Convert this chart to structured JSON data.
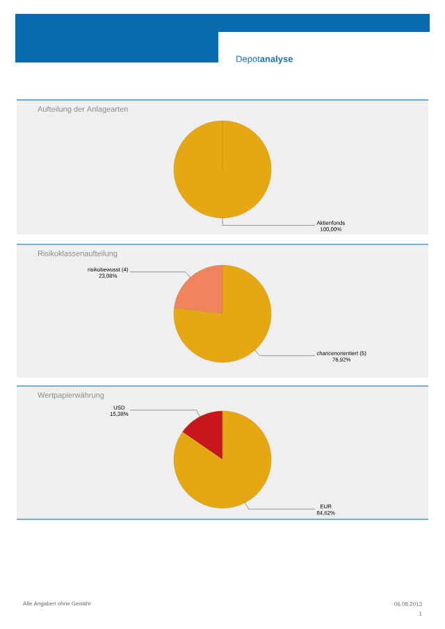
{
  "chart_data": [
    {
      "type": "pie",
      "title": "Aufteilung der Anlagearten",
      "categories": [
        "Aktienfonds"
      ],
      "values": [
        100
      ],
      "value_labels": [
        "100,00%"
      ],
      "colors": [
        "#e5a812"
      ],
      "annotations": [
        "Depot**analyse**"
      ]
    },
    {
      "type": "pie",
      "title": "Risikoklassenaufteilung",
      "categories": [
        "risikobewusst (4)",
        "chancenorientiert (5)"
      ],
      "values": [
        23.08,
        76.92
      ],
      "value_labels": [
        "23,08%",
        "76,92%"
      ],
      "colors": [
        "#f0845c",
        "#e5a812"
      ]
    },
    {
      "type": "pie",
      "title": "Wertpapierwährung",
      "categories": [
        "USD",
        "EUR"
      ],
      "values": [
        15.38,
        84.62
      ],
      "value_labels": [
        "15,38%",
        "84,62%"
      ],
      "colors": [
        "#c8161d",
        "#e5a812"
      ],
      "annotations": [
        "Alle Angaben ohne Gewähr",
        "06.08.2013",
        "1"
      ]
    }
  ]
}
